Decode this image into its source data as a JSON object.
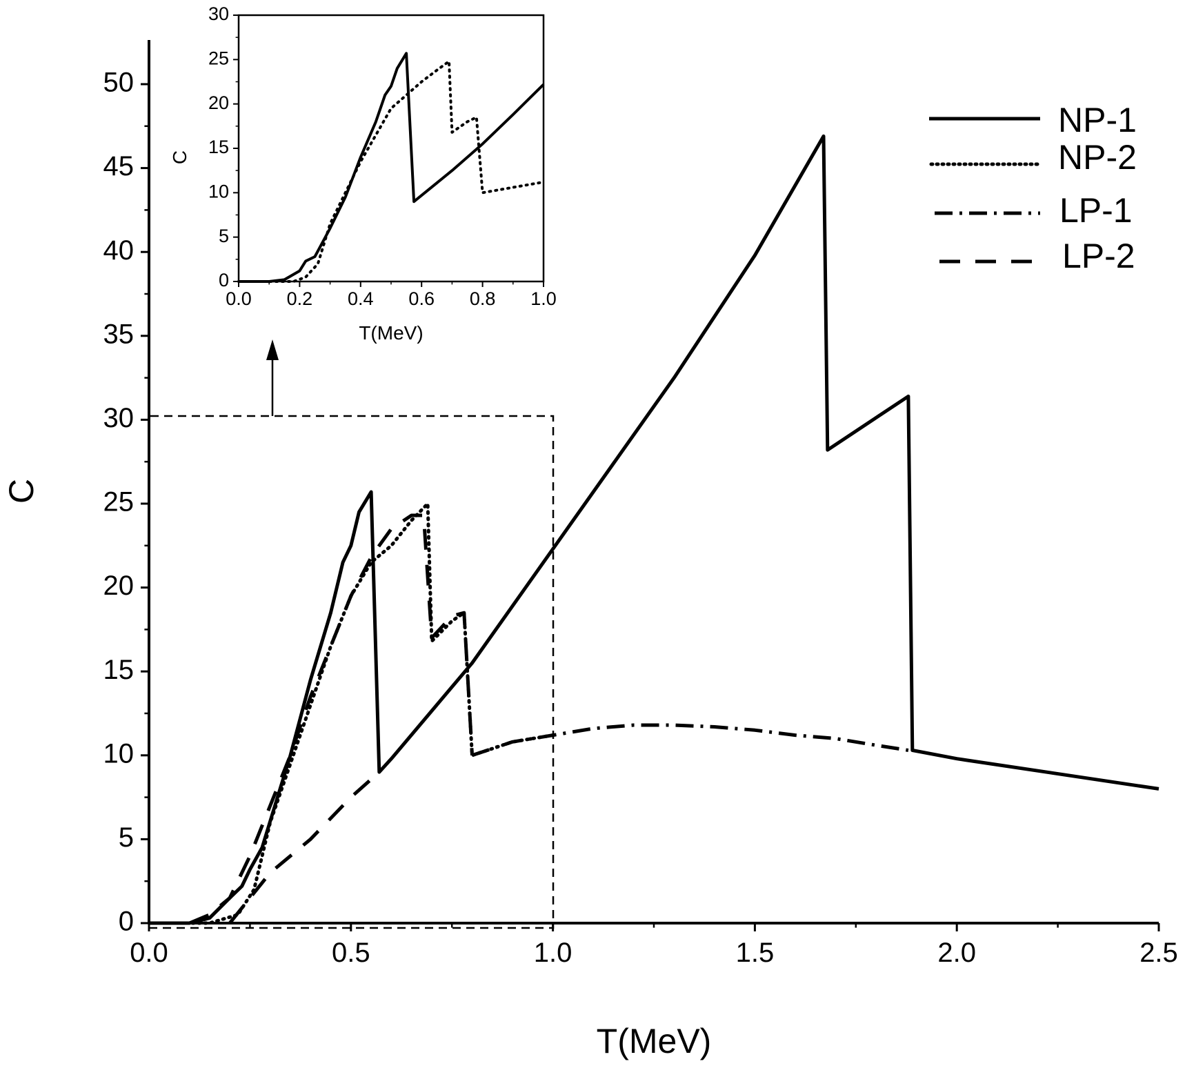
{
  "chart_data": [
    {
      "type": "line",
      "xlabel": "T(MeV)",
      "ylabel": "C",
      "xlim": [
        0,
        2.5
      ],
      "ylim": [
        0,
        52
      ],
      "xticks": [
        "0.0",
        "0.5",
        "1.0",
        "1.5",
        "2.0",
        "2.5"
      ],
      "yticks": [
        "0",
        "5",
        "10",
        "15",
        "20",
        "25",
        "30",
        "35",
        "40",
        "45",
        "50"
      ],
      "legend": [
        "NP-1",
        "NP-2",
        "LP-1",
        "LP-2"
      ],
      "legend_position": "top-right",
      "grid": false,
      "annotation": "dashed box 0.0-1.0 MeV, C 0-30 with arrow pointing to inset",
      "series": [
        {
          "name": "NP-1",
          "style": "solid",
          "x": [
            0.0,
            0.1,
            0.15,
            0.2,
            0.23,
            0.25,
            0.28,
            0.35,
            0.4,
            0.45,
            0.48,
            0.5,
            0.52,
            0.55,
            0.57,
            0.6,
            0.8,
            1.0,
            1.3,
            1.5,
            1.67,
            1.68,
            1.88,
            1.89,
            2.0,
            2.5
          ],
          "y": [
            0.0,
            0.0,
            0.3,
            1.5,
            2.2,
            3.2,
            4.5,
            10.0,
            14.5,
            18.5,
            21.5,
            22.5,
            24.5,
            25.7,
            9.0,
            9.8,
            15.5,
            22.3,
            32.5,
            39.8,
            46.9,
            28.2,
            31.4,
            10.3,
            9.8,
            8.0
          ]
        },
        {
          "name": "NP-2",
          "style": "dotted",
          "x": [
            0.0,
            0.15,
            0.22,
            0.26,
            0.3,
            0.35,
            0.4,
            0.45,
            0.5,
            0.55,
            0.6,
            0.65,
            0.69,
            0.7,
            0.75,
            0.78,
            0.8,
            0.9,
            1.0
          ],
          "y": [
            0.0,
            0.0,
            0.5,
            2.0,
            6.0,
            9.5,
            13.0,
            16.5,
            19.5,
            21.5,
            22.5,
            24.0,
            25.0,
            16.8,
            18.0,
            18.5,
            10.0,
            10.8,
            11.2
          ]
        },
        {
          "name": "LP-1",
          "style": "dash-dot",
          "x": [
            0.8,
            0.9,
            1.0,
            1.1,
            1.2,
            1.3,
            1.4,
            1.5,
            1.6,
            1.7,
            1.8,
            1.88
          ],
          "y": [
            10.0,
            10.8,
            11.2,
            11.6,
            11.8,
            11.8,
            11.7,
            11.5,
            11.2,
            11.0,
            10.6,
            10.3
          ]
        },
        {
          "name": "LP-2",
          "style": "dashed",
          "x": [
            0.1,
            0.15,
            0.2,
            0.25,
            0.3,
            0.35,
            0.4,
            0.45,
            0.5,
            0.55,
            0.57,
            0.6,
            0.65,
            0.68,
            0.7,
            0.75,
            0.78,
            0.8
          ],
          "y": [
            0.0,
            0.5,
            1.5,
            4.0,
            7.0,
            10.0,
            13.5,
            16.5,
            19.5,
            21.8,
            22.5,
            23.5,
            24.3,
            24.3,
            17.0,
            18.3,
            18.5,
            10.0
          ]
        },
        {
          "name": "",
          "style": "dashed",
          "x": [
            0.2,
            0.3,
            0.4,
            0.5,
            0.57
          ],
          "y": [
            0.0,
            3.0,
            5.0,
            7.5,
            9.0
          ]
        }
      ]
    },
    {
      "type": "line",
      "inset": true,
      "xlabel": "T(MeV)",
      "ylabel": "C",
      "xlim": [
        0,
        1.0
      ],
      "ylim": [
        0,
        30
      ],
      "xticks": [
        "0.0",
        "0.2",
        "0.4",
        "0.6",
        "0.8",
        "1.0"
      ],
      "yticks": [
        "0",
        "5",
        "10",
        "15",
        "20",
        "25",
        "30"
      ],
      "series": [
        {
          "name": "NP-1",
          "style": "solid",
          "x": [
            0.0,
            0.1,
            0.15,
            0.2,
            0.22,
            0.25,
            0.3,
            0.35,
            0.4,
            0.45,
            0.48,
            0.5,
            0.52,
            0.55,
            0.575,
            0.7,
            0.8,
            0.9,
            1.0
          ],
          "y": [
            0.0,
            0.0,
            0.2,
            1.2,
            2.3,
            2.8,
            6.0,
            9.5,
            14.0,
            18.0,
            21.0,
            22.0,
            24.0,
            25.7,
            9.0,
            12.5,
            15.5,
            18.8,
            22.2
          ]
        },
        {
          "name": "NP-2",
          "style": "dotted",
          "x": [
            0.0,
            0.18,
            0.22,
            0.26,
            0.3,
            0.35,
            0.4,
            0.45,
            0.5,
            0.55,
            0.6,
            0.65,
            0.69,
            0.7,
            0.75,
            0.78,
            0.8,
            0.9,
            1.0
          ],
          "y": [
            0.0,
            0.0,
            0.5,
            2.0,
            6.5,
            10.0,
            13.5,
            16.5,
            19.5,
            21.0,
            22.5,
            23.8,
            24.8,
            16.8,
            18.0,
            18.5,
            10.0,
            10.6,
            11.2
          ]
        }
      ]
    }
  ]
}
